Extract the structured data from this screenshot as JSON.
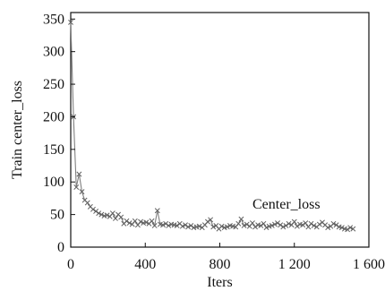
{
  "chart_data": {
    "type": "line",
    "title": "",
    "xlabel": "Iters",
    "ylabel": "Train center_loss",
    "xlim": [
      0,
      1600
    ],
    "ylim": [
      0,
      360
    ],
    "x_ticks": [
      0,
      400,
      800,
      1200,
      1600
    ],
    "x_tick_labels": [
      "0",
      "400",
      "800",
      "1 200",
      "1 600"
    ],
    "y_ticks": [
      0,
      50,
      100,
      150,
      200,
      250,
      300,
      350
    ],
    "y_tick_labels": [
      "0",
      "50",
      "100",
      "150",
      "200",
      "250",
      "300",
      "350"
    ],
    "grid": false,
    "annotation": "Center_loss",
    "marker": "x",
    "colors": {
      "line": "#808080",
      "marker": "#606060",
      "axis": "#111111"
    },
    "series": [
      {
        "name": "Center_loss",
        "x": [
          0,
          15,
          30,
          45,
          60,
          75,
          90,
          105,
          120,
          135,
          150,
          165,
          180,
          195,
          210,
          225,
          240,
          255,
          270,
          285,
          300,
          315,
          330,
          345,
          360,
          375,
          390,
          405,
          420,
          435,
          450,
          465,
          480,
          495,
          510,
          525,
          540,
          555,
          570,
          585,
          600,
          615,
          630,
          645,
          660,
          675,
          690,
          705,
          720,
          735,
          750,
          765,
          780,
          795,
          810,
          825,
          840,
          855,
          870,
          885,
          900,
          915,
          930,
          945,
          960,
          975,
          990,
          1005,
          1020,
          1035,
          1050,
          1065,
          1080,
          1095,
          1110,
          1125,
          1140,
          1155,
          1170,
          1185,
          1200,
          1215,
          1230,
          1245,
          1260,
          1275,
          1290,
          1305,
          1320,
          1335,
          1350,
          1365,
          1380,
          1395,
          1410,
          1425,
          1440,
          1455,
          1470,
          1485,
          1500,
          1515
        ],
        "y": [
          345,
          200,
          92,
          112,
          85,
          72,
          68,
          62,
          58,
          55,
          52,
          50,
          48,
          49,
          47,
          52,
          44,
          50,
          46,
          36,
          40,
          37,
          35,
          40,
          34,
          39,
          37,
          38,
          36,
          40,
          33,
          56,
          35,
          34,
          36,
          33,
          35,
          34,
          33,
          36,
          32,
          34,
          31,
          33,
          30,
          31,
          32,
          30,
          34,
          39,
          42,
          31,
          33,
          28,
          32,
          30,
          31,
          33,
          32,
          31,
          36,
          43,
          33,
          35,
          32,
          37,
          31,
          34,
          33,
          36,
          30,
          32,
          33,
          35,
          37,
          34,
          31,
          33,
          36,
          34,
          39,
          32,
          35,
          34,
          37,
          31,
          36,
          33,
          31,
          35,
          38,
          34,
          30,
          32,
          36,
          34,
          31,
          30,
          28,
          27,
          30,
          28
        ]
      }
    ]
  }
}
